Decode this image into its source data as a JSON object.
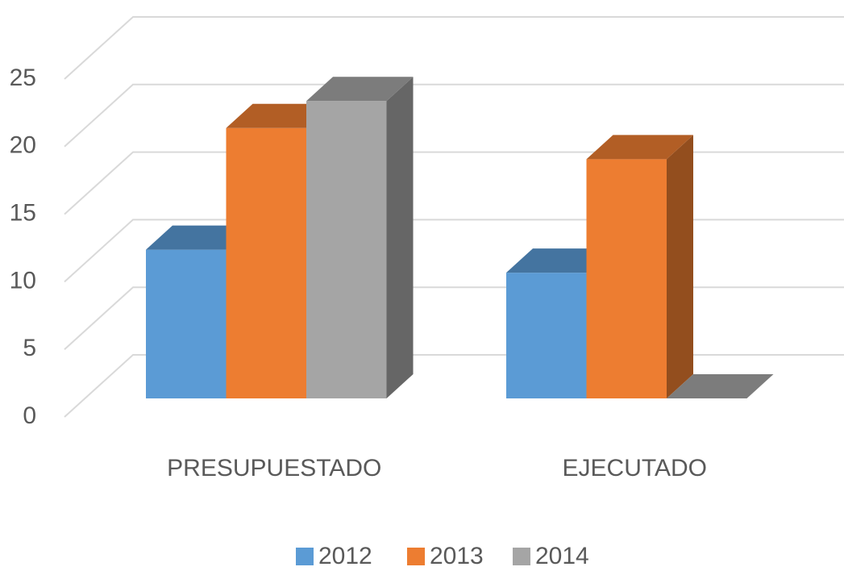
{
  "chart_data": {
    "type": "bar3d",
    "categories": [
      "PRESUPUESTADO",
      "EJECUTADO"
    ],
    "series": [
      {
        "name": "2012",
        "color": "#5b9bd5",
        "values": [
          11,
          9.3
        ]
      },
      {
        "name": "2013",
        "color": "#ed7d31",
        "values": [
          20,
          17.7
        ]
      },
      {
        "name": "2014",
        "color": "#a5a5a5",
        "values": [
          22,
          0
        ]
      }
    ],
    "ylim": [
      0,
      25
    ],
    "yticks": [
      0,
      5,
      10,
      15,
      20,
      25
    ],
    "grid": true,
    "legend": "bottom"
  }
}
